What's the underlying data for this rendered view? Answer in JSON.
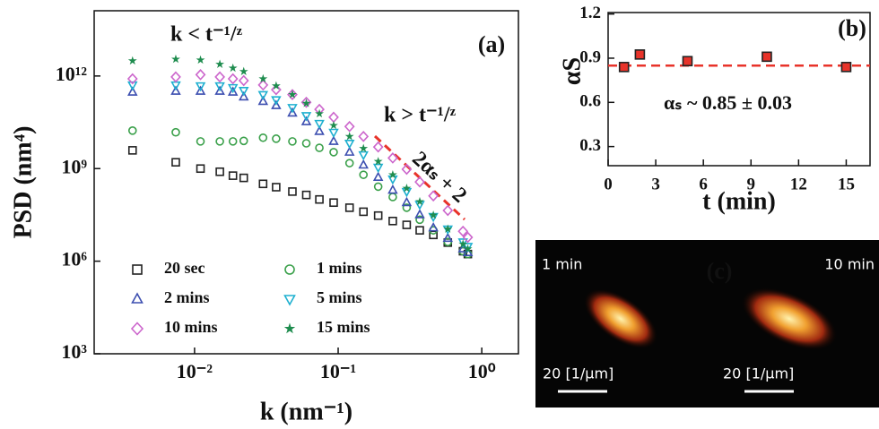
{
  "chart_data": [
    {
      "type": "scatter",
      "log_x": true,
      "log_y": true,
      "x_label": "k (nm⁻¹)",
      "y_label": "PSD (nm⁴)",
      "panel_label": "(a)",
      "annotations": [
        "k < t⁻¹/ᶻ",
        "k > t⁻¹/ᶻ",
        "2αₛ + 2"
      ],
      "xlim": [
        0.002,
        1.8
      ],
      "ylim": [
        1000,
        130000000000000.0
      ],
      "xticks": [
        {
          "value": 0.01,
          "label": "10⁻²"
        },
        {
          "value": 0.1,
          "label": "10⁻¹"
        },
        {
          "value": 1,
          "label": "10⁰"
        }
      ],
      "yticks": [
        {
          "value": 1000,
          "label": "10³"
        },
        {
          "value": 1000000,
          "label": "10⁶"
        },
        {
          "value": 1000000000,
          "label": "10⁹"
        },
        {
          "value": 1000000000000,
          "label": "10¹²"
        }
      ],
      "legend": "lower left",
      "x": [
        0.0037,
        0.0074,
        0.011,
        0.015,
        0.0185,
        0.022,
        0.03,
        0.037,
        0.048,
        0.06,
        0.074,
        0.093,
        0.12,
        0.15,
        0.19,
        0.24,
        0.3,
        0.37,
        0.46,
        0.58,
        0.74,
        0.8
      ],
      "series": [
        {
          "name": "20 sec",
          "color": "#222222",
          "marker": "square",
          "values": [
            3900000000.0,
            1600000000.0,
            1000000000.0,
            790000000.0,
            590000000.0,
            500000000.0,
            320000000.0,
            250000000.0,
            180000000.0,
            140000000.0,
            100000000.0,
            79000000.0,
            54000000.0,
            40000000.0,
            30000000.0,
            20000000.0,
            15000000.0,
            10000000.0,
            7100000.0,
            4000000.0,
            2100000.0,
            1700000.0
          ]
        },
        {
          "name": "1 mins",
          "color": "#3aa04a",
          "marker": "circle",
          "values": [
            17000000000.0,
            15000000000.0,
            7600000000.0,
            7600000000.0,
            7600000000.0,
            7900000000.0,
            10000000000.0,
            9300000000.0,
            7600000000.0,
            6600000000.0,
            4700000000.0,
            3400000000.0,
            1500000000.0,
            630000000.0,
            260000000.0,
            120000000.0,
            54000000.0,
            22000000.0,
            10000000.0,
            4200000.0,
            2100000.0,
            1700000.0
          ]
        },
        {
          "name": "2 mins",
          "color": "#3d4fb0",
          "marker": "triangle-up",
          "values": [
            300000000000.0,
            320000000000.0,
            320000000000.0,
            320000000000.0,
            300000000000.0,
            210000000000.0,
            150000000000.0,
            110000000000.0,
            63000000000.0,
            33000000000.0,
            16000000000.0,
            7600000000.0,
            3400000000.0,
            1300000000.0,
            520000000.0,
            200000000.0,
            79000000.0,
            32000000.0,
            12000000.0,
            5500000.0,
            2500000.0,
            1900000.0
          ]
        },
        {
          "name": "5 mins",
          "color": "#1fb0d0",
          "marker": "triangle-down",
          "values": [
            510000000000.0,
            510000000000.0,
            480000000000.0,
            480000000000.0,
            420000000000.0,
            340000000000.0,
            250000000000.0,
            170000000000.0,
            95000000000.0,
            52000000000.0,
            29000000000.0,
            15000000000.0,
            6600000000.0,
            2800000000.0,
            1100000000.0,
            460000000.0,
            180000000.0,
            69000000.0,
            28000000.0,
            11000000.0,
            4200000.0,
            3000000.0
          ]
        },
        {
          "name": "10 mins",
          "color": "#cc66cc",
          "marker": "diamond",
          "values": [
            810000000000.0,
            930000000000.0,
            1100000000000.0,
            930000000000.0,
            810000000000.0,
            710000000000.0,
            510000000000.0,
            360000000000.0,
            250000000000.0,
            140000000000.0,
            83000000000.0,
            46000000000.0,
            23000000000.0,
            11000000000.0,
            5000000000.0,
            2200000000.0,
            950000000.0,
            370000000.0,
            130000000.0,
            44000000.0,
            9300000.0,
            5900000.0
          ]
        },
        {
          "name": "15 mins",
          "color": "#1e8c4e",
          "marker": "star",
          "values": [
            3100000000000.0,
            3500000000000.0,
            3300000000000.0,
            2400000000000.0,
            1800000000000.0,
            1400000000000.0,
            810000000000.0,
            480000000000.0,
            250000000000.0,
            130000000000.0,
            60000000000.0,
            25000000000.0,
            11000000000.0,
            4500000000.0,
            1700000000.0,
            630000000.0,
            230000000.0,
            85000000.0,
            31000000.0,
            11000000.0,
            3600000.0,
            2500000.0
          ]
        }
      ]
    },
    {
      "type": "scatter",
      "x_label": "t (min)",
      "y_label": "αS",
      "panel_label": "(b)",
      "annotation": "αₛ ~ 0.85 ± 0.03",
      "xlim": [
        0,
        16.5
      ],
      "ylim": [
        0.17,
        1.21
      ],
      "xticks": [
        0,
        3,
        6,
        9,
        12,
        15
      ],
      "yticks": [
        0.3,
        0.6,
        0.9,
        1.2
      ],
      "x": [
        1,
        2,
        5,
        10,
        15
      ],
      "series": [
        {
          "color": "#e8332a",
          "edge_color": "#222222",
          "marker": "square",
          "values": [
            0.84,
            0.925,
            0.88,
            0.91,
            0.84
          ]
        }
      ],
      "fit_line": {
        "value": 0.85,
        "color": "#e8332a",
        "style": "dashed"
      }
    }
  ],
  "panel_c": {
    "label": "(c)",
    "left_label": "1 min",
    "right_label": "10 min",
    "scale_labels": [
      "20 [1/μm]",
      "20 [1/μm]"
    ]
  }
}
